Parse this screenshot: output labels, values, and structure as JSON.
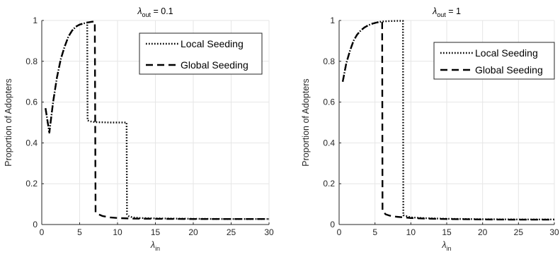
{
  "chart_data": [
    {
      "type": "line",
      "title": "λout = 0.1",
      "title_parts": {
        "symbol": "λ",
        "subscript": "out",
        "suffix": " = 0.1"
      },
      "xlabel": "λin",
      "xlabel_parts": {
        "symbol": "λ",
        "subscript": "in"
      },
      "ylabel": "Proportion of Adopters",
      "xlim": [
        0,
        30
      ],
      "ylim": [
        0,
        1
      ],
      "xticks": [
        0,
        5,
        10,
        15,
        20,
        25,
        30
      ],
      "xtick_labels": [
        "0",
        "5",
        "10",
        "15",
        "20",
        "25",
        "30"
      ],
      "yticks": [
        0,
        0.2,
        0.4,
        0.6,
        0.8,
        1
      ],
      "ytick_labels": [
        "0",
        "0.2",
        "0.4",
        "0.6",
        "0.8",
        "1"
      ],
      "grid": true,
      "legend_position": "top-right",
      "series": [
        {
          "name": "Local Seeding",
          "style": "dotted",
          "x": [
            0.5,
            1.0,
            1.5,
            2.0,
            2.5,
            3.0,
            3.5,
            4.0,
            4.5,
            5.0,
            5.5,
            6.0,
            6.05,
            6.5,
            7.0,
            7.5,
            8.0,
            9.0,
            10.0,
            11.0,
            11.2,
            11.25,
            11.5,
            12.0,
            13.0,
            15.0,
            20.0,
            25.0,
            30.0
          ],
          "y": [
            0.57,
            0.45,
            0.6,
            0.72,
            0.81,
            0.87,
            0.92,
            0.95,
            0.97,
            0.98,
            0.985,
            0.99,
            0.51,
            0.505,
            0.502,
            0.501,
            0.501,
            0.5,
            0.5,
            0.5,
            0.5,
            0.05,
            0.04,
            0.035,
            0.032,
            0.03,
            0.028,
            0.027,
            0.027
          ]
        },
        {
          "name": "Global Seeding",
          "style": "dashed",
          "x": [
            0.5,
            1.0,
            1.5,
            2.0,
            2.5,
            3.0,
            3.5,
            4.0,
            4.5,
            5.0,
            5.5,
            6.0,
            6.5,
            7.0,
            7.1,
            7.5,
            8.0,
            9.0,
            10.0,
            12.0,
            15.0,
            20.0,
            25.0,
            30.0
          ],
          "y": [
            0.57,
            0.45,
            0.6,
            0.72,
            0.81,
            0.87,
            0.92,
            0.95,
            0.97,
            0.98,
            0.985,
            0.99,
            0.993,
            0.995,
            0.06,
            0.05,
            0.042,
            0.035,
            0.032,
            0.029,
            0.028,
            0.027,
            0.027,
            0.027
          ]
        }
      ]
    },
    {
      "type": "line",
      "title": "λout = 1",
      "title_parts": {
        "symbol": "λ",
        "subscript": "out",
        "suffix": " = 1"
      },
      "xlabel": "λin",
      "xlabel_parts": {
        "symbol": "λ",
        "subscript": "in"
      },
      "ylabel": "Proportion of Adopters",
      "xlim": [
        0,
        30
      ],
      "ylim": [
        0,
        1
      ],
      "xticks": [
        0,
        5,
        10,
        15,
        20,
        25,
        30
      ],
      "xtick_labels": [
        "0",
        "5",
        "10",
        "15",
        "20",
        "25",
        "30"
      ],
      "yticks": [
        0,
        0.2,
        0.4,
        0.6,
        0.8,
        1
      ],
      "ytick_labels": [
        "0",
        "0.2",
        "0.4",
        "0.6",
        "0.8",
        "1"
      ],
      "grid": true,
      "legend_position": "top-right",
      "series": [
        {
          "name": "Local Seeding",
          "style": "dotted",
          "x": [
            0.5,
            1.0,
            1.5,
            2.0,
            2.5,
            3.0,
            3.5,
            4.0,
            4.5,
            5.0,
            5.5,
            6.0,
            7.0,
            8.0,
            8.9,
            8.95,
            9.5,
            10.0,
            12.0,
            15.0,
            20.0,
            25.0,
            30.0
          ],
          "y": [
            0.7,
            0.79,
            0.85,
            0.9,
            0.93,
            0.95,
            0.965,
            0.975,
            0.983,
            0.988,
            0.992,
            0.995,
            0.997,
            0.998,
            0.998,
            0.045,
            0.04,
            0.035,
            0.031,
            0.028,
            0.026,
            0.025,
            0.025
          ]
        },
        {
          "name": "Global Seeding",
          "style": "dashed",
          "x": [
            0.5,
            1.0,
            1.5,
            2.0,
            2.5,
            3.0,
            3.5,
            4.0,
            4.5,
            5.0,
            5.5,
            6.0,
            6.05,
            6.5,
            7.0,
            8.0,
            10.0,
            12.0,
            15.0,
            20.0,
            25.0,
            30.0
          ],
          "y": [
            0.7,
            0.79,
            0.85,
            0.9,
            0.93,
            0.95,
            0.965,
            0.975,
            0.983,
            0.988,
            0.992,
            0.995,
            0.065,
            0.05,
            0.044,
            0.038,
            0.032,
            0.029,
            0.027,
            0.025,
            0.024,
            0.024
          ]
        }
      ]
    }
  ]
}
